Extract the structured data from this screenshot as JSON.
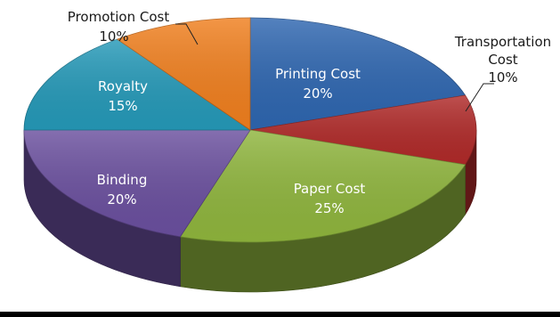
{
  "chart_data": {
    "type": "pie",
    "style": "3d",
    "start": "12 o'clock, clockwise",
    "slices": [
      {
        "label": "Printing Cost",
        "value": 20,
        "value_label": "20%",
        "color": "#2E66B0"
      },
      {
        "label": "Transportation Cost",
        "value": 10,
        "value_label": "10%",
        "color": "#B02A29"
      },
      {
        "label": "Paper Cost",
        "value": 25,
        "value_label": "25%",
        "color": "#8FB53D"
      },
      {
        "label": "Binding",
        "value": 20,
        "value_label": "20%",
        "color": "#6A4F9E"
      },
      {
        "label": "Royalty",
        "value": 15,
        "value_label": "15%",
        "color": "#2599B8"
      },
      {
        "label": "Promotion Cost",
        "value": 10,
        "value_label": "10%",
        "color": "#F07F1E"
      }
    ],
    "outside_labels": {
      "promotion": {
        "line1": "Promotion Cost",
        "line2": "10%"
      },
      "transport": {
        "line1": "Transportation",
        "line2": "Cost",
        "line3": "10%"
      }
    }
  }
}
